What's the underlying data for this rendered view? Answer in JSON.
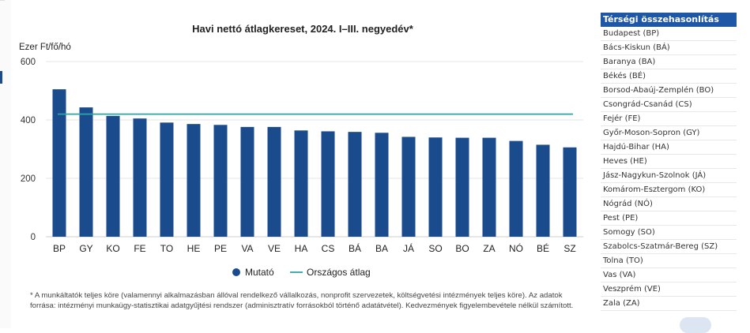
{
  "chart_data": {
    "type": "bar",
    "title": "Havi nettó átlagkereset, 2024. I–III. negyedév*",
    "ylabel": "Ezer Ft/fő/hó",
    "ylim": [
      0,
      600
    ],
    "yticks": [
      0,
      200,
      400,
      600
    ],
    "grid": "horizontal",
    "legend_position": "bottom",
    "categories": [
      "BP",
      "GY",
      "KO",
      "FE",
      "TO",
      "HE",
      "PE",
      "VA",
      "VE",
      "HA",
      "CS",
      "BÁ",
      "BA",
      "JÁ",
      "SO",
      "BO",
      "ZA",
      "NÓ",
      "BÉ",
      "SZ"
    ],
    "series": [
      {
        "name": "Mutató",
        "type": "bar",
        "color": "#1a4b8c",
        "values": [
          505,
          443,
          414,
          405,
          391,
          386,
          383,
          376,
          376,
          364,
          361,
          359,
          356,
          342,
          340,
          339,
          339,
          328,
          315,
          306
        ]
      },
      {
        "name": "Országos átlag",
        "type": "line",
        "color": "#2aa6a6",
        "value": 420
      }
    ],
    "footnote": "* A munkáltatók teljes köre (valamennyi alkalmazásban állóval rendelkező vállalkozás, nonprofit szervezetek, költségvetési intézmények teljes köre). Az adatok forrása: intézményi munkaügy-statisztikai adatgyűjtési rendszer (adminisztratív forrásokból történő adatátvétel). Kedvezmények figyelembevétele nélkül számított."
  },
  "sidebar": {
    "title": "Térségi összehasonlítás",
    "items": [
      "Budapest (BP)",
      "Bács-Kiskun (BÁ)",
      "Baranya (BA)",
      "Békés (BÉ)",
      "Borsod-Abaúj-Zemplén (BO)",
      "Csongrád-Csanád (CS)",
      "Fejér (FE)",
      "Győr-Moson-Sopron (GY)",
      "Hajdú-Bihar (HA)",
      "Heves (HE)",
      "Jász-Nagykun-Szolnok (JÁ)",
      "Komárom-Esztergom (KO)",
      "Nógrád (NÓ)",
      "Pest (PE)",
      "Somogy (SO)",
      "Szabolcs-Szatmár-Bereg (SZ)",
      "Tolna (TO)",
      "Vas (VA)",
      "Veszprém (VE)",
      "Zala (ZA)"
    ]
  }
}
